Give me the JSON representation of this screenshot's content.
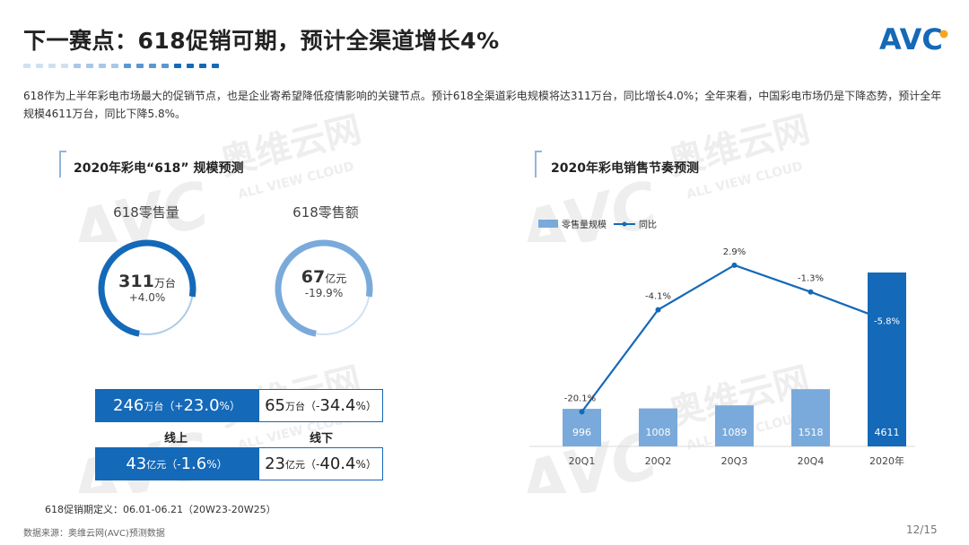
{
  "page": {
    "title": "下一赛点：618促销可期，预计全渠道增长4%",
    "description": "618作为上半年彩电市场最大的促销节点，也是企业寄希望降低疫情影响的关键节点。预计618全渠道彩电规模将达311万台，同比增长4.0%；全年来看，中国彩电市场仍是下降态势，预计全年规模4611万台，同比下降5.8%。",
    "footnote": "618促销期定义：06.01-06.21（20W23-20W25）",
    "source": "数据来源：奥维云网(AVC)预测数据",
    "page_number": "12/15",
    "logo_text": "AVC",
    "watermark_cn": "奥维云网",
    "watermark_en": "ALL VIEW CLOUD",
    "colors": {
      "dark_blue": "#1469b8",
      "light_blue": "#7aaadb",
      "accent_dots": [
        "#cfe0f2",
        "#a9c8e8",
        "#5b97d2",
        "#1469b8"
      ]
    }
  },
  "left_section": {
    "heading": "2020年彩电“618” 规模预测",
    "kpis": [
      {
        "label": "618零售量",
        "value": "311",
        "unit": "万台",
        "change": "+4.0%",
        "ring_color": "#1469b8"
      },
      {
        "label": "618零售额",
        "value": "67",
        "unit": "亿元",
        "change": "-19.9%",
        "ring_color": "#7aaadb"
      }
    ],
    "table": {
      "columns": [
        "线上",
        "线下"
      ],
      "rows": [
        [
          {
            "value": "246",
            "unit": "万台",
            "paren_open": "（",
            "sign": "+",
            "pct": "23.0",
            "pct_unit": "%",
            "paren_close": "）"
          },
          {
            "value": "65",
            "unit": "万台",
            "paren_open": "（",
            "sign": "-",
            "pct": "34.4",
            "pct_unit": "%",
            "paren_close": "）"
          }
        ],
        [
          {
            "value": "43",
            "unit": "亿元",
            "paren_open": "（",
            "sign": "-",
            "pct": "1.6",
            "pct_unit": "%",
            "paren_close": "）"
          },
          {
            "value": "23",
            "unit": "亿元",
            "paren_open": "（",
            "sign": "-",
            "pct": "40.4",
            "pct_unit": "%",
            "paren_close": "）"
          }
        ]
      ]
    }
  },
  "chart_data": {
    "type": "bar",
    "title": "2020年彩电销售节奏预测",
    "categories": [
      "20Q1",
      "20Q2",
      "20Q3",
      "20Q4",
      "2020年"
    ],
    "legend_position": "top-left",
    "series": [
      {
        "name": "零售量规模",
        "type": "bar",
        "values": [
          996,
          1008,
          1089,
          1518,
          4611
        ],
        "value_labels": [
          "996",
          "1008",
          "1089",
          "1518",
          "4611"
        ],
        "bar_colors": [
          "#7aaadb",
          "#7aaadb",
          "#7aaadb",
          "#7aaadb",
          "#1469b8"
        ]
      },
      {
        "name": "同比",
        "type": "line",
        "values": [
          -20.1,
          -4.1,
          2.9,
          -1.3,
          -5.8
        ],
        "value_labels": [
          "-20.1%",
          "-4.1%",
          "2.9%",
          "-1.3%",
          "-5.8%"
        ],
        "color": "#1469b8"
      }
    ],
    "bar_axis_range": [
      0,
      4611
    ],
    "line_axis_range": [
      -23,
      4
    ],
    "grid": false
  }
}
